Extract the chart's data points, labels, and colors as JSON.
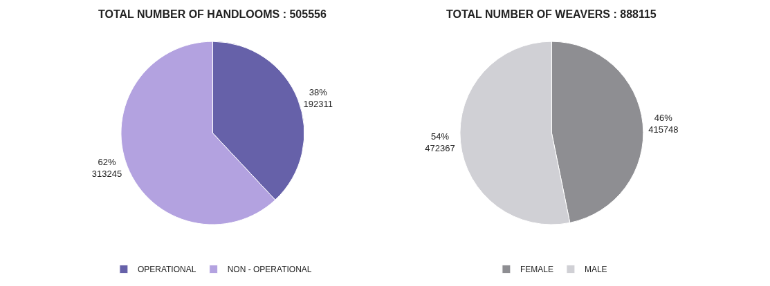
{
  "chart_data": [
    {
      "type": "pie",
      "title": "TOTAL NUMBER OF HANDLOOMS : 505556",
      "categories": [
        "OPERATIONAL",
        "NON - OPERATIONAL"
      ],
      "values": [
        192311,
        313245
      ],
      "colors": [
        "#6661a9",
        "#b3a2e0"
      ],
      "value_labels": [
        "38%\n192311",
        "62%\n313245"
      ],
      "legend": "bottom"
    },
    {
      "type": "pie",
      "title": "TOTAL NUMBER OF WEAVERS : 888115",
      "categories": [
        "FEMALE",
        "MALE"
      ],
      "values": [
        415748,
        472367
      ],
      "colors": [
        "#8e8e92",
        "#d0d0d5"
      ],
      "value_labels": [
        "46%\n415748",
        "54%\n472367"
      ],
      "legend": "bottom"
    }
  ]
}
